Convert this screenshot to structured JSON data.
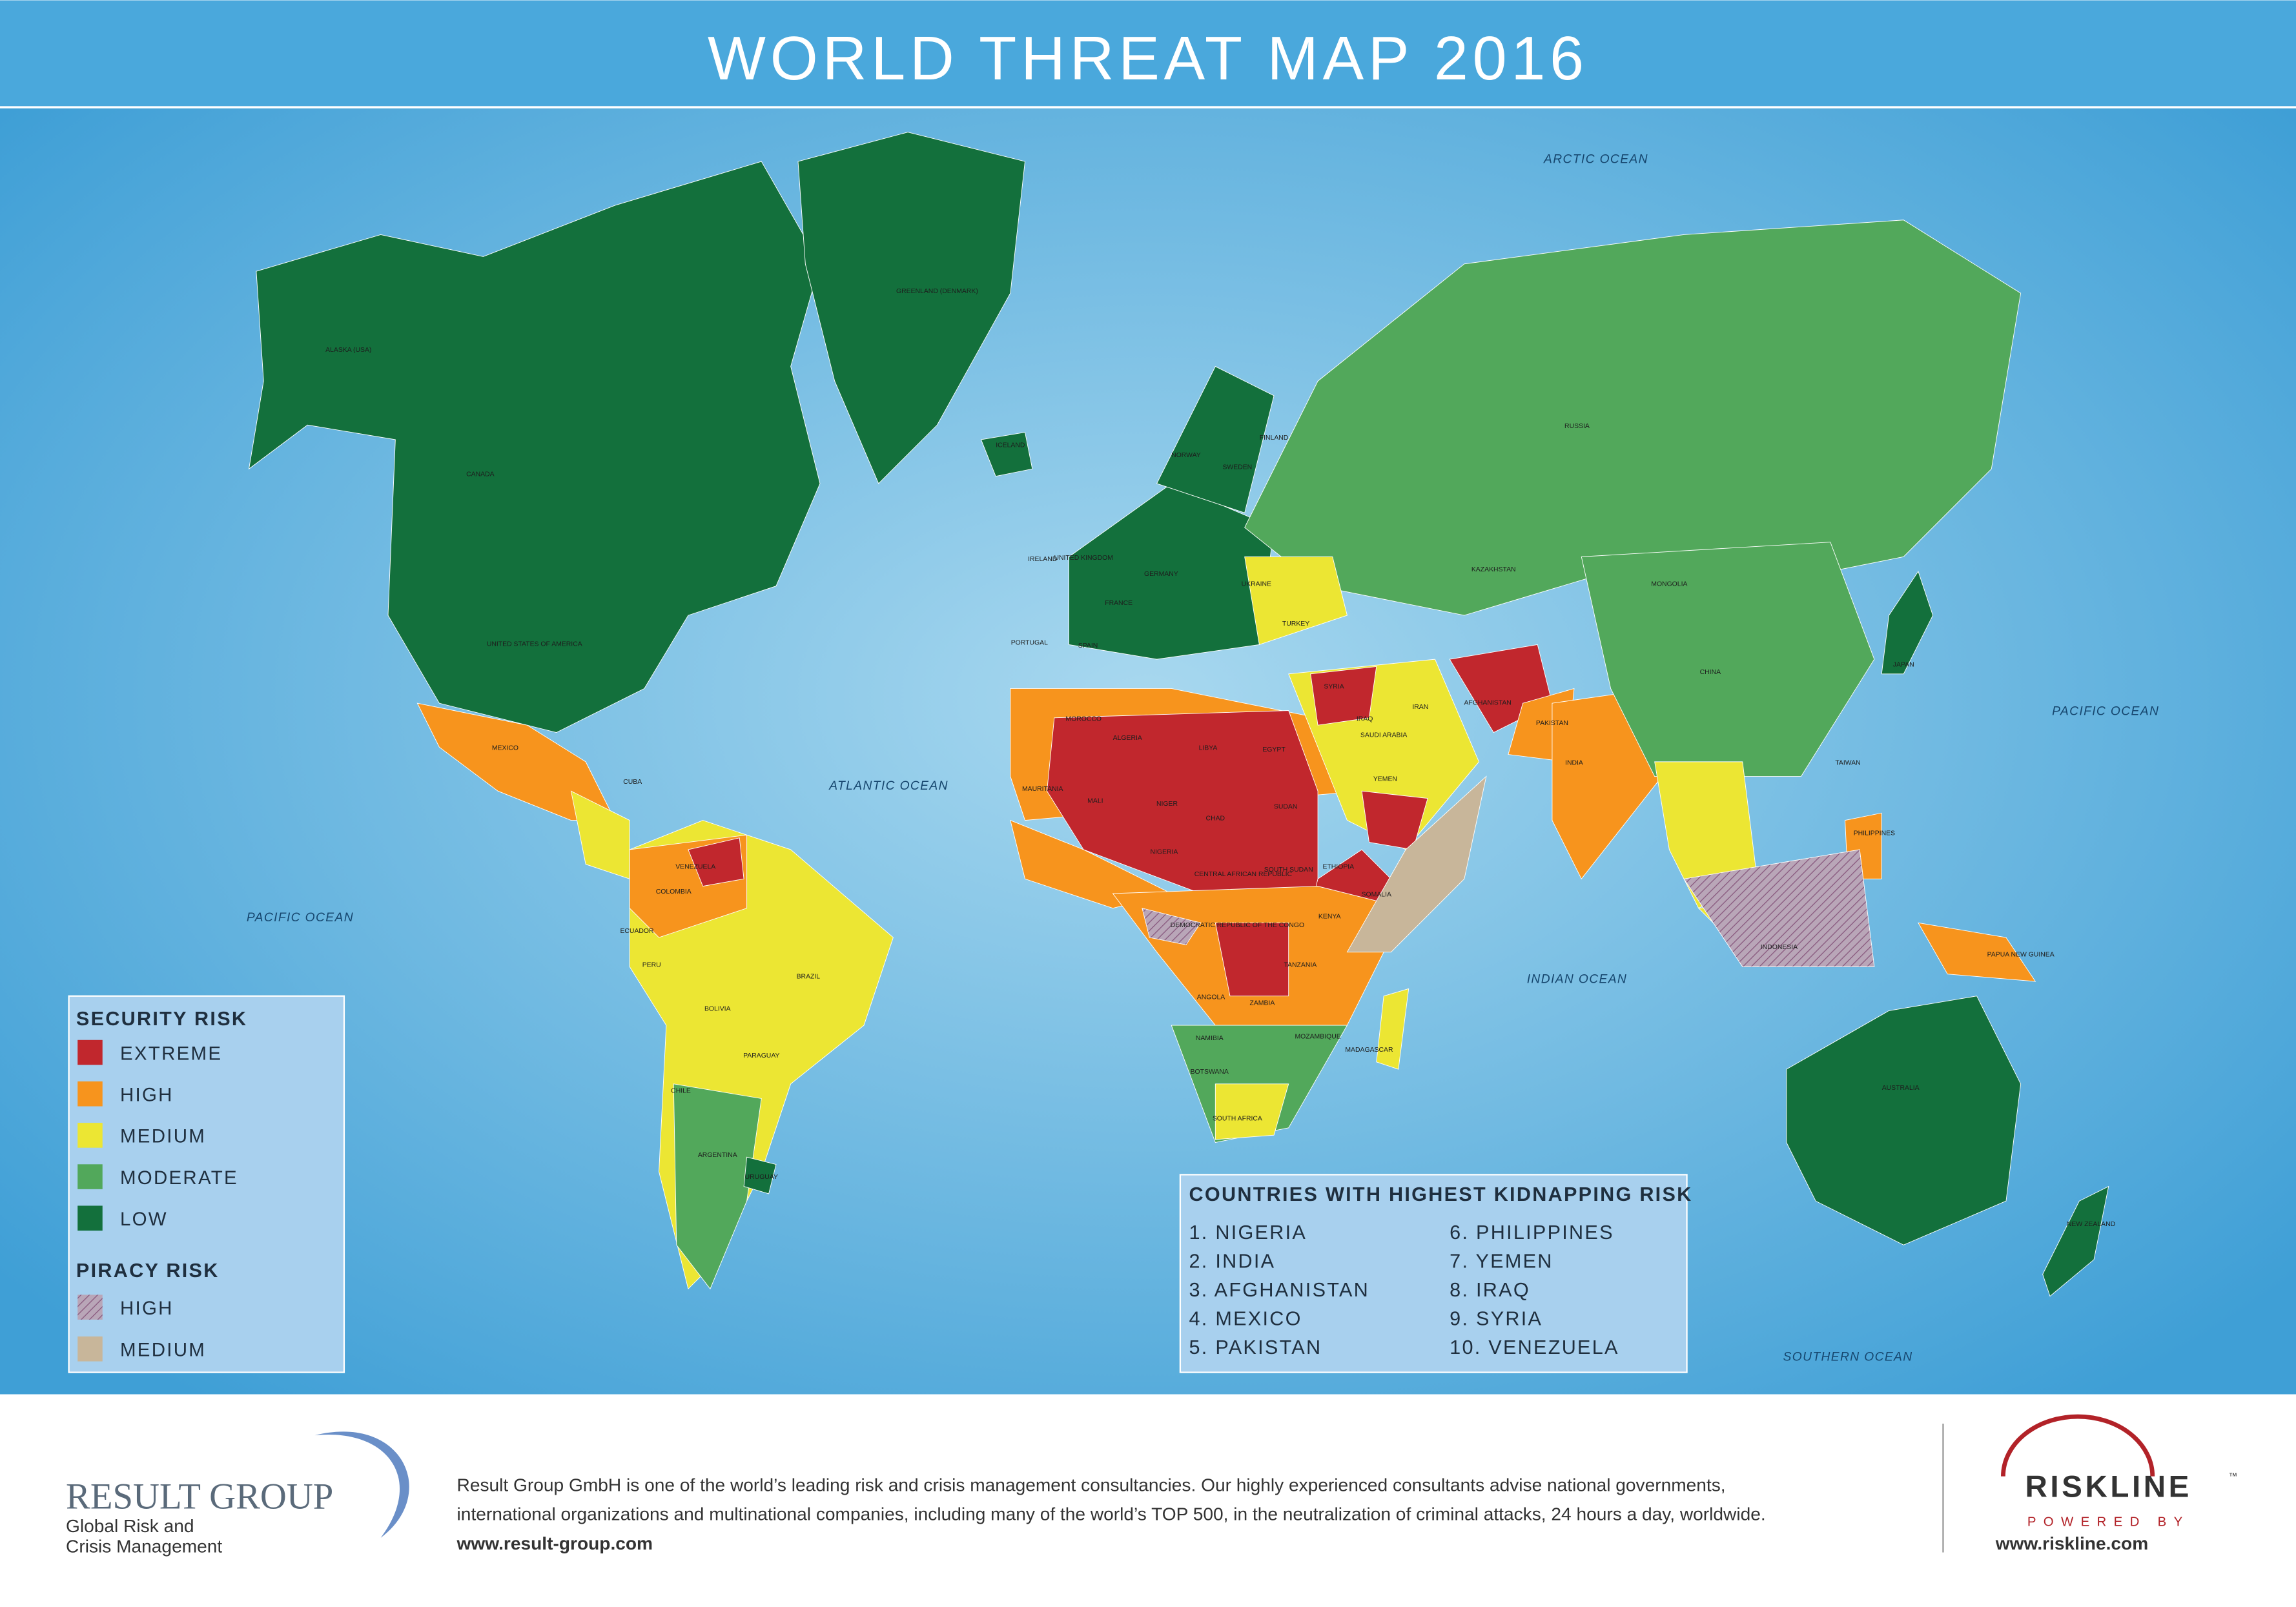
{
  "header": {
    "title": "WORLD THREAT MAP 2016"
  },
  "oceans": [
    "ARCTIC OCEAN",
    "ATLANTIC OCEAN",
    "PACIFIC OCEAN",
    "PACIFIC OCEAN",
    "INDIAN OCEAN",
    "SOUTHERN OCEAN"
  ],
  "countries": [
    "ALASKA (USA)",
    "CANADA",
    "UNITED STATES OF AMERICA",
    "GREENLAND (DENMARK)",
    "ICELAND",
    "MEXICO",
    "CUBA",
    "VENEZUELA",
    "COLOMBIA",
    "ECUADOR",
    "PERU",
    "BRAZIL",
    "BOLIVIA",
    "PARAGUAY",
    "CHILE",
    "ARGENTINA",
    "URUGUAY",
    "NORWAY",
    "SWEDEN",
    "FINLAND",
    "IRELAND",
    "UNITED KINGDOM",
    "FRANCE",
    "SPAIN",
    "PORTUGAL",
    "GERMANY",
    "UKRAINE",
    "TURKEY",
    "RUSSIA",
    "KAZAKHSTAN",
    "MOROCCO",
    "ALGERIA",
    "LIBYA",
    "EGYPT",
    "MAURITANIA",
    "MALI",
    "NIGER",
    "CHAD",
    "SUDAN",
    "SOUTH SUDAN",
    "NIGERIA",
    "ETHIOPIA",
    "SOMALIA",
    "KENYA",
    "CENTRAL AFRICAN REPUBLIC",
    "DEMOCRATIC REPUBLIC OF THE CONGO",
    "TANZANIA",
    "ANGOLA",
    "ZAMBIA",
    "NAMIBIA",
    "BOTSWANA",
    "MOZAMBIQUE",
    "SOUTH AFRICA",
    "MADAGASCAR",
    "SYRIA",
    "IRAQ",
    "IRAN",
    "SAUDI ARABIA",
    "YEMEN",
    "AFGHANISTAN",
    "PAKISTAN",
    "INDIA",
    "CHINA",
    "MONGOLIA",
    "JAPAN",
    "TAIWAN",
    "PHILIPPINES",
    "INDONESIA",
    "PAPUA NEW GUINEA",
    "AUSTRALIA",
    "NEW ZEALAND"
  ],
  "legend": {
    "security_title": "SECURITY RISK",
    "security_items": [
      {
        "label": "EXTREME",
        "color": "#c1272d"
      },
      {
        "label": "HIGH",
        "color": "#f7941d"
      },
      {
        "label": "MEDIUM",
        "color": "#ece633"
      },
      {
        "label": "MODERATE",
        "color": "#52a85b"
      },
      {
        "label": "LOW",
        "color": "#13703c"
      }
    ],
    "piracy_title": "PIRACY RISK",
    "piracy_items": [
      {
        "label": "HIGH",
        "color": "#a58aa0"
      },
      {
        "label": "MEDIUM",
        "color": "#c8b69a"
      }
    ]
  },
  "kidnapping": {
    "title": "COUNTRIES WITH HIGHEST KIDNAPPING RISK",
    "items": [
      "1. NIGERIA",
      "2. INDIA",
      "3. AFGHANISTAN",
      "4. MEXICO",
      "5. PAKISTAN",
      "6. PHILIPPINES",
      "7. YEMEN",
      "8. IRAQ",
      "9. SYRIA",
      "10. VENEZUELA"
    ]
  },
  "footer": {
    "company": "RESULT GROUP",
    "tagline": [
      "Global Risk and",
      "Crisis Management"
    ],
    "description": [
      "Result Group GmbH is one of the world’s leading risk and crisis management consultancies. Our highly experienced consultants advise national governments,",
      "international organizations and multinational companies, including many of the world’s TOP 500, in the neutralization of criminal attacks, 24 hours a day, worldwide."
    ],
    "url": "www.result-group.com",
    "brand": "RISKLINE",
    "trademark": "™",
    "powered": "POWERED BY",
    "brand_url": "www.riskline.com"
  }
}
